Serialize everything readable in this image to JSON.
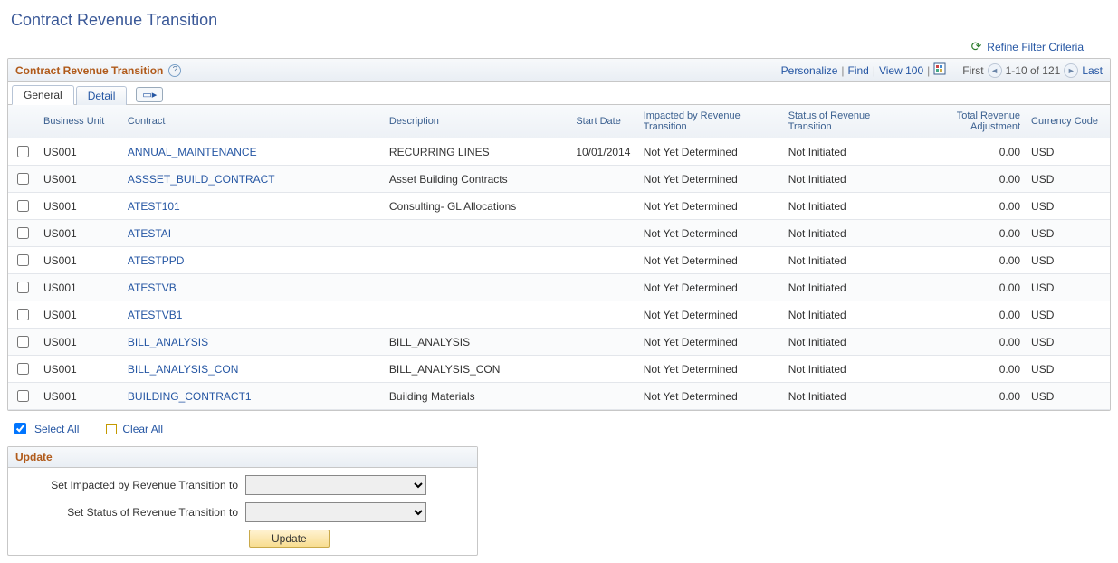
{
  "page_title": "Contract Revenue Transition",
  "refine_filter_label": "Refine Filter Criteria",
  "grid": {
    "title": "Contract Revenue Transition",
    "personalize": "Personalize",
    "find": "Find",
    "view_all": "View 100",
    "first": "First",
    "count_text": "1-10 of 121",
    "last": "Last",
    "tabs": {
      "general": "General",
      "detail": "Detail"
    },
    "columns": {
      "bu": "Business Unit",
      "contract": "Contract",
      "description": "Description",
      "start_date": "Start Date",
      "impacted": "Impacted by Revenue Transition",
      "status": "Status of Revenue Transition",
      "total": "Total Revenue Adjustment",
      "currency": "Currency Code"
    },
    "rows": [
      {
        "bu": "US001",
        "contract": "ANNUAL_MAINTENANCE",
        "desc": "RECURRING LINES",
        "start": "10/01/2014",
        "impacted": "Not Yet Determined",
        "status": "Not Initiated",
        "total": "0.00",
        "curr": "USD"
      },
      {
        "bu": "US001",
        "contract": "ASSSET_BUILD_CONTRACT",
        "desc": "Asset Building Contracts",
        "start": "",
        "impacted": "Not Yet Determined",
        "status": "Not Initiated",
        "total": "0.00",
        "curr": "USD"
      },
      {
        "bu": "US001",
        "contract": "ATEST101",
        "desc": "Consulting- GL Allocations",
        "start": "",
        "impacted": "Not Yet Determined",
        "status": "Not Initiated",
        "total": "0.00",
        "curr": "USD"
      },
      {
        "bu": "US001",
        "contract": "ATESTAI",
        "desc": "",
        "start": "",
        "impacted": "Not Yet Determined",
        "status": "Not Initiated",
        "total": "0.00",
        "curr": "USD"
      },
      {
        "bu": "US001",
        "contract": "ATESTPPD",
        "desc": "",
        "start": "",
        "impacted": "Not Yet Determined",
        "status": "Not Initiated",
        "total": "0.00",
        "curr": "USD"
      },
      {
        "bu": "US001",
        "contract": "ATESTVB",
        "desc": "",
        "start": "",
        "impacted": "Not Yet Determined",
        "status": "Not Initiated",
        "total": "0.00",
        "curr": "USD"
      },
      {
        "bu": "US001",
        "contract": "ATESTVB1",
        "desc": "",
        "start": "",
        "impacted": "Not Yet Determined",
        "status": "Not Initiated",
        "total": "0.00",
        "curr": "USD"
      },
      {
        "bu": "US001",
        "contract": "BILL_ANALYSIS",
        "desc": "BILL_ANALYSIS",
        "start": "",
        "impacted": "Not Yet Determined",
        "status": "Not Initiated",
        "total": "0.00",
        "curr": "USD"
      },
      {
        "bu": "US001",
        "contract": "BILL_ANALYSIS_CON",
        "desc": "BILL_ANALYSIS_CON",
        "start": "",
        "impacted": "Not Yet Determined",
        "status": "Not Initiated",
        "total": "0.00",
        "curr": "USD"
      },
      {
        "bu": "US001",
        "contract": "BUILDING_CONTRACT1",
        "desc": "Building Materials",
        "start": "",
        "impacted": "Not Yet Determined",
        "status": "Not Initiated",
        "total": "0.00",
        "curr": "USD"
      }
    ]
  },
  "select_all": "Select All",
  "clear_all": "Clear All",
  "update_panel": {
    "title": "Update",
    "impacted_label": "Set Impacted by Revenue Transition to",
    "status_label": "Set Status of Revenue Transition to",
    "button": "Update"
  },
  "colors": {
    "page_title": "#3b5998",
    "section_title": "#b05a1a",
    "link": "#2556a3",
    "header_bg_top": "#f7f9fb",
    "header_bg_bottom": "#e9eef4",
    "border": "#c7c7c7"
  }
}
